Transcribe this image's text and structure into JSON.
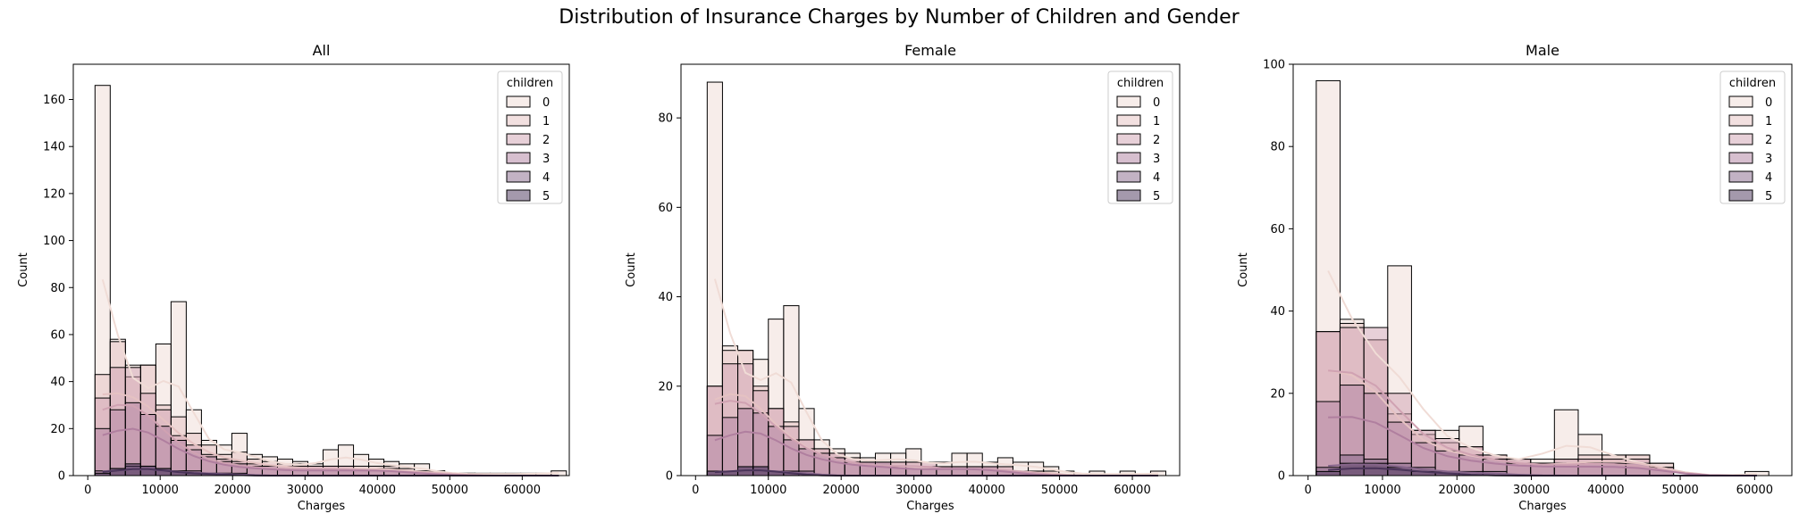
{
  "figure": {
    "title": "Distribution of Insurance Charges by Number of Children and Gender"
  },
  "palette": {
    "children_colors": [
      "#f0dcd6",
      "#e5c2c2",
      "#d0a2b2",
      "#b07f9f",
      "#86658a",
      "#4a3459"
    ],
    "fill_opacity": 0.5,
    "edge_color": "#000000"
  },
  "chart_data": [
    {
      "type": "histogram",
      "title": "All",
      "xlabel": "Charges",
      "ylabel": "Count",
      "xlim": [
        -2000,
        66500
      ],
      "ylim": [
        0,
        175
      ],
      "xticks": [
        0,
        10000,
        20000,
        30000,
        40000,
        50000,
        60000
      ],
      "yticks": [
        0,
        20,
        40,
        60,
        80,
        100,
        120,
        140,
        160
      ],
      "grid": false,
      "legend": {
        "title": "children",
        "labels": [
          "0",
          "1",
          "2",
          "3",
          "4",
          "5"
        ],
        "placement": "top-right"
      },
      "bin_start": 1000,
      "bin_width": 2100,
      "series": [
        {
          "name": "0",
          "values": [
            166,
            58,
            47,
            47,
            56,
            74,
            28,
            15,
            13,
            18,
            9,
            8,
            7,
            6,
            5,
            11,
            13,
            9,
            7,
            6,
            5,
            5,
            2,
            1,
            1,
            1,
            1,
            1,
            1,
            1,
            2
          ]
        },
        {
          "name": "1",
          "values": [
            43,
            57,
            42,
            47,
            30,
            25,
            18,
            13,
            9,
            10,
            7,
            6,
            5,
            5,
            4,
            4,
            4,
            4,
            4,
            4,
            3,
            2,
            2,
            1,
            1,
            0,
            0,
            0,
            0,
            0,
            0
          ]
        },
        {
          "name": "2",
          "values": [
            33,
            46,
            46,
            35,
            28,
            17,
            13,
            9,
            7,
            6,
            5,
            4,
            4,
            4,
            4,
            4,
            4,
            3,
            3,
            3,
            2,
            2,
            1,
            1,
            0,
            0,
            0,
            0,
            0,
            0,
            0
          ]
        },
        {
          "name": "3",
          "values": [
            20,
            28,
            31,
            26,
            21,
            15,
            11,
            8,
            6,
            5,
            4,
            4,
            3,
            3,
            3,
            3,
            3,
            3,
            3,
            3,
            2,
            1,
            1,
            0,
            0,
            0,
            0,
            0,
            0,
            0,
            0
          ]
        },
        {
          "name": "4",
          "values": [
            2,
            3,
            4,
            4,
            3,
            2,
            2,
            1,
            1,
            1,
            0,
            0,
            0,
            0,
            0,
            0,
            0,
            0,
            0,
            0,
            0,
            0,
            0,
            0,
            0,
            0,
            0,
            0,
            0,
            0,
            0
          ]
        },
        {
          "name": "5",
          "values": [
            1,
            3,
            5,
            4,
            3,
            2,
            1,
            1,
            1,
            0,
            0,
            0,
            0,
            0,
            0,
            0,
            0,
            0,
            0,
            0,
            0,
            0,
            0,
            0,
            0,
            0,
            0,
            0,
            0,
            0,
            0
          ]
        }
      ]
    },
    {
      "type": "histogram",
      "title": "Female",
      "xlabel": "Charges",
      "ylabel": "Count",
      "xlim": [
        -2000,
        66500
      ],
      "ylim": [
        0,
        92
      ],
      "xticks": [
        0,
        10000,
        20000,
        30000,
        40000,
        50000,
        60000
      ],
      "yticks": [
        0,
        20,
        40,
        60,
        80
      ],
      "grid": false,
      "legend": {
        "title": "children",
        "labels": [
          "0",
          "1",
          "2",
          "3",
          "4",
          "5"
        ],
        "placement": "top-right"
      },
      "bin_start": 1600,
      "bin_width": 2100,
      "series": [
        {
          "name": "0",
          "values": [
            88,
            29,
            28,
            26,
            35,
            38,
            15,
            8,
            6,
            5,
            4,
            5,
            5,
            6,
            3,
            3,
            5,
            5,
            3,
            4,
            3,
            3,
            2,
            1,
            0,
            1,
            0,
            1,
            0,
            1
          ]
        },
        {
          "name": "1",
          "values": [
            20,
            28,
            28,
            20,
            15,
            12,
            8,
            6,
            5,
            4,
            3,
            3,
            3,
            3,
            2,
            2,
            2,
            2,
            2,
            2,
            1,
            1,
            1,
            0,
            0,
            0,
            0,
            0,
            0,
            0
          ]
        },
        {
          "name": "2",
          "values": [
            20,
            25,
            25,
            19,
            15,
            11,
            8,
            6,
            5,
            4,
            3,
            3,
            3,
            3,
            3,
            2,
            2,
            2,
            2,
            2,
            1,
            1,
            0,
            0,
            0,
            0,
            0,
            0,
            0,
            0
          ]
        },
        {
          "name": "3",
          "values": [
            9,
            13,
            15,
            14,
            11,
            8,
            6,
            5,
            4,
            3,
            3,
            3,
            2,
            2,
            2,
            2,
            2,
            2,
            2,
            1,
            1,
            0,
            0,
            0,
            0,
            0,
            0,
            0,
            0,
            0
          ]
        },
        {
          "name": "4",
          "values": [
            1,
            1,
            2,
            2,
            1,
            1,
            1,
            0,
            0,
            0,
            0,
            0,
            0,
            0,
            0,
            0,
            0,
            0,
            0,
            0,
            0,
            0,
            0,
            0,
            0,
            0,
            0,
            0,
            0,
            0
          ]
        },
        {
          "name": "5",
          "values": [
            1,
            1,
            2,
            2,
            1,
            1,
            0,
            0,
            0,
            0,
            0,
            0,
            0,
            0,
            0,
            0,
            0,
            0,
            0,
            0,
            0,
            0,
            0,
            0,
            0,
            0,
            0,
            0,
            0,
            0
          ]
        }
      ]
    },
    {
      "type": "histogram",
      "title": "Male",
      "xlabel": "Charges",
      "ylabel": "Count",
      "xlim": [
        -2000,
        65000
      ],
      "ylim": [
        0,
        100
      ],
      "xticks": [
        0,
        10000,
        20000,
        30000,
        40000,
        50000,
        60000
      ],
      "yticks": [
        0,
        20,
        40,
        60,
        80,
        100
      ],
      "grid": false,
      "legend": {
        "title": "children",
        "labels": [
          "0",
          "1",
          "2",
          "3",
          "4",
          "5"
        ],
        "placement": "top-right"
      },
      "bin_start": 1100,
      "bin_width": 3200,
      "series": [
        {
          "name": "0",
          "values": [
            96,
            38,
            33,
            51,
            11,
            11,
            12,
            5,
            4,
            4,
            16,
            10,
            5,
            5,
            3,
            0,
            0,
            0,
            1
          ]
        },
        {
          "name": "1",
          "values": [
            35,
            37,
            33,
            15,
            10,
            8,
            7,
            5,
            4,
            3,
            4,
            5,
            5,
            5,
            3,
            0,
            0,
            0,
            0
          ]
        },
        {
          "name": "2",
          "values": [
            35,
            36,
            36,
            20,
            11,
            9,
            7,
            5,
            4,
            3,
            4,
            4,
            4,
            4,
            2,
            0,
            0,
            0,
            0
          ]
        },
        {
          "name": "3",
          "values": [
            18,
            22,
            20,
            13,
            8,
            6,
            5,
            4,
            3,
            3,
            3,
            3,
            3,
            3,
            2,
            0,
            0,
            0,
            0
          ]
        },
        {
          "name": "4",
          "values": [
            2,
            5,
            4,
            3,
            2,
            1,
            1,
            1,
            0,
            0,
            0,
            0,
            0,
            0,
            0,
            0,
            0,
            0,
            0
          ]
        },
        {
          "name": "5",
          "values": [
            1,
            3,
            3,
            2,
            1,
            1,
            0,
            0,
            0,
            0,
            0,
            0,
            0,
            0,
            0,
            0,
            0,
            0,
            0
          ]
        }
      ]
    }
  ]
}
